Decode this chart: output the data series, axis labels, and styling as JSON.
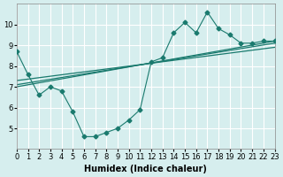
{
  "xlabel": "Humidex (Indice chaleur)",
  "ylabel": "",
  "background_color": "#d6eeee",
  "grid_color": "#ffffff",
  "line_color": "#1a7a6e",
  "xlim": [
    0,
    23
  ],
  "ylim": [
    4,
    11
  ],
  "xticks": [
    0,
    1,
    2,
    3,
    4,
    5,
    6,
    7,
    8,
    9,
    10,
    11,
    12,
    13,
    14,
    15,
    16,
    17,
    18,
    19,
    20,
    21,
    22,
    23
  ],
  "yticks": [
    5,
    6,
    7,
    8,
    9,
    10
  ],
  "series": [
    {
      "x": [
        0,
        1,
        2,
        3,
        4,
        5,
        6,
        7,
        8,
        9,
        10,
        11,
        12,
        13,
        14,
        15,
        16,
        17,
        18,
        19,
        20,
        21,
        22,
        23
      ],
      "y": [
        8.7,
        7.6,
        6.6,
        7.0,
        6.8,
        5.8,
        4.6,
        4.6,
        4.8,
        5.0,
        5.4,
        5.9,
        8.2,
        8.4,
        9.6,
        10.1,
        9.6,
        10.6,
        9.8,
        9.5,
        9.1,
        9.1,
        9.2,
        9.2
      ],
      "marker": "D"
    },
    {
      "x": [
        0,
        23
      ],
      "y": [
        7.0,
        9.2
      ],
      "marker": null
    },
    {
      "x": [
        0,
        23
      ],
      "y": [
        7.1,
        9.1
      ],
      "marker": null
    },
    {
      "x": [
        0,
        23
      ],
      "y": [
        7.3,
        8.9
      ],
      "marker": null
    }
  ]
}
